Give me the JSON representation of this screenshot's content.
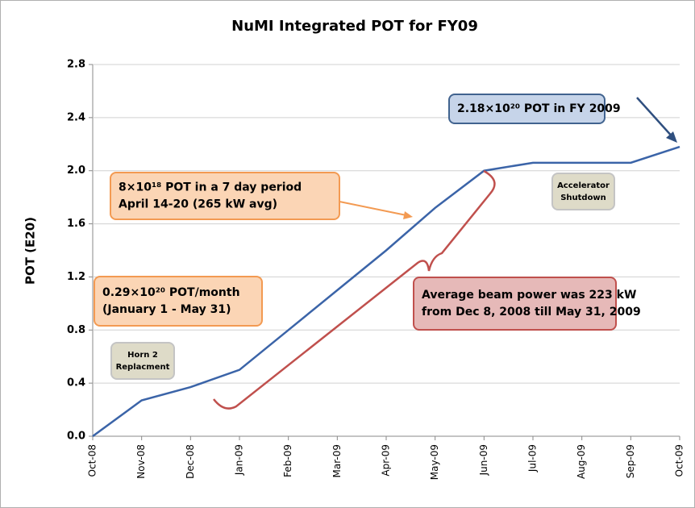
{
  "chart_data": {
    "type": "line",
    "title": "NuMI Integrated POT for FY09",
    "y_label": "POT (E20)",
    "categories": [
      "Oct-08",
      "Nov-08",
      "Dec-08",
      "Jan-09",
      "Feb-09",
      "Mar-09",
      "Apr-09",
      "May-09",
      "Jun-09",
      "Jul-09",
      "Aug-09",
      "Sep-09",
      "Oct-09"
    ],
    "series": [
      {
        "name": "Integrated POT",
        "color": "#3b64a8",
        "values": [
          0.0,
          0.27,
          0.37,
          0.5,
          0.8,
          1.1,
          1.4,
          1.72,
          2.0,
          2.06,
          2.06,
          2.06,
          2.18
        ]
      }
    ],
    "ylim": [
      0,
      2.8
    ],
    "yticks": [
      {
        "value": 0,
        "label": "0.0"
      },
      0.4,
      0.8,
      1.2,
      1.6,
      {
        "value": 2,
        "label": "2.0"
      },
      2.4,
      2.8
    ],
    "grid": true,
    "annotations": [
      {
        "lines": [
          "2.18×10²⁰ POT in FY 2009"
        ]
      },
      {
        "lines": [
          "8×10¹⁸ POT in a 7 day period",
          "April 14-20 (265 kW avg)"
        ]
      },
      {
        "lines": [
          "0.29×10²⁰ POT/month",
          "(January 1 - May 31)"
        ]
      },
      {
        "lines": [
          "Average beam power was 223 kW",
          "from Dec 8, 2008 till May 31, 2009"
        ]
      },
      {
        "lines": [
          "Accelerator",
          "Shutdown"
        ]
      },
      {
        "lines": [
          "Horn 2",
          "Replacment"
        ]
      }
    ]
  }
}
